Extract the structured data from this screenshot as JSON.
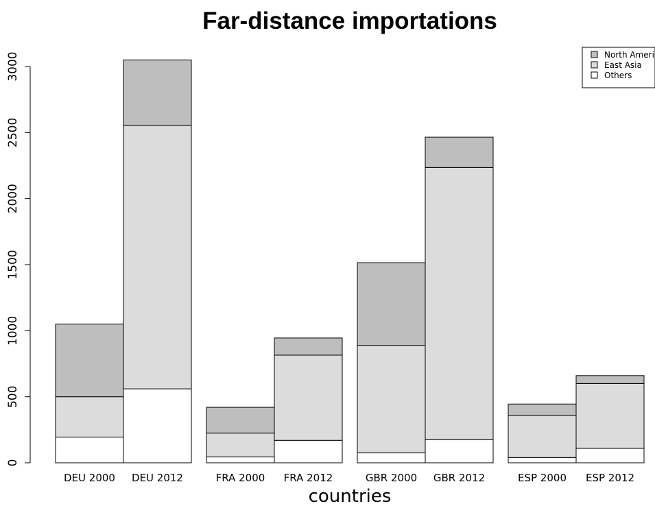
{
  "chart_data": {
    "type": "bar",
    "stacked": true,
    "title": "Far-distance importations",
    "xlabel": "countries",
    "ylabel": "",
    "categories": [
      "DEU 2000",
      "DEU 2012",
      "FRA 2000",
      "FRA 2012",
      "GBR 2000",
      "GBR 2012",
      "ESP 2000",
      "ESP 2012"
    ],
    "groups": [
      [
        "DEU 2000",
        "DEU 2012"
      ],
      [
        "FRA 2000",
        "FRA 2012"
      ],
      [
        "GBR 2000",
        "GBR 2012"
      ],
      [
        "ESP 2000",
        "ESP 2012"
      ]
    ],
    "series": [
      {
        "name": "Others",
        "color": "#ffffff",
        "values": [
          195,
          560,
          45,
          170,
          75,
          175,
          40,
          110
        ]
      },
      {
        "name": "East Asia",
        "color": "#dcdcdc",
        "values": [
          305,
          1995,
          180,
          645,
          815,
          2060,
          320,
          490
        ]
      },
      {
        "name": "North America",
        "color": "#bebebe",
        "values": [
          550,
          495,
          195,
          130,
          625,
          230,
          85,
          60
        ]
      }
    ],
    "ylim": [
      0,
      3000
    ],
    "yticks": [
      0,
      500,
      1000,
      1500,
      2000,
      2500,
      3000
    ],
    "legend": {
      "position": "top-right",
      "entries": [
        "North America",
        "East Asia",
        "Others"
      ]
    },
    "grid": false
  }
}
